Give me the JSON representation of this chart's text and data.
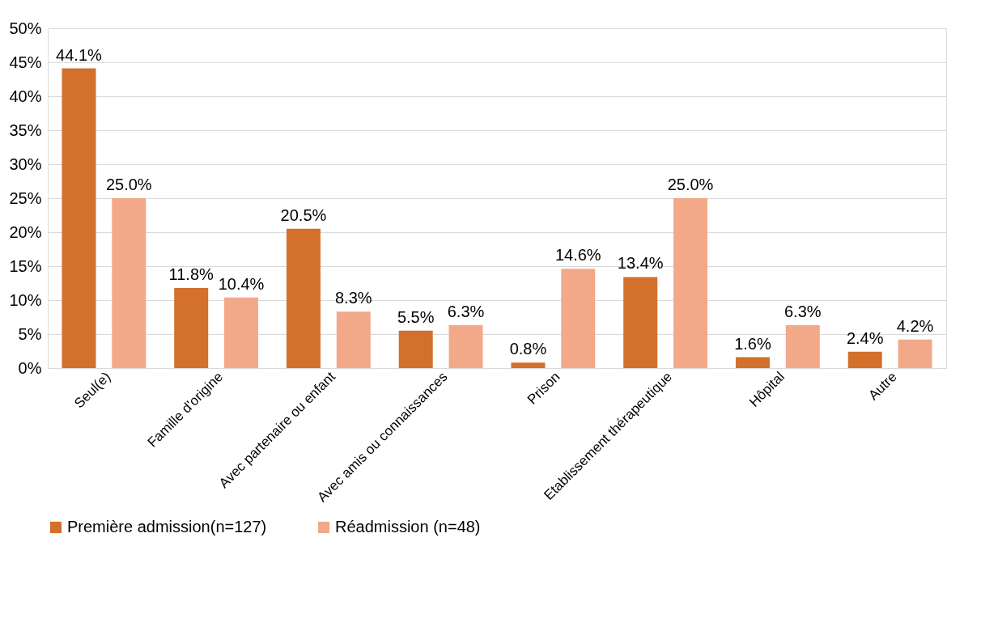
{
  "chart_data": {
    "type": "bar",
    "categories": [
      "Seul(e)",
      "Famille d'origine",
      "Avec partenaire ou enfant",
      "Avec amis ou connaissances",
      "Prison",
      "Etablissement thérapeutique",
      "Hôpital",
      "Autre"
    ],
    "series": [
      {
        "name": "Première admission(n=127)",
        "color": "#d2702c",
        "values": [
          44.1,
          11.8,
          20.5,
          5.5,
          0.8,
          13.4,
          1.6,
          2.4
        ],
        "value_labels": [
          "44.1%",
          "11.8%",
          "20.5%",
          "5.5%",
          "0.8%",
          "13.4%",
          "1.6%",
          "2.4%"
        ]
      },
      {
        "name": "Réadmission (n=48)",
        "color": "#f2a98a",
        "values": [
          25.0,
          10.4,
          8.3,
          6.3,
          14.6,
          25.0,
          6.3,
          4.2
        ],
        "value_labels": [
          "25.0%",
          "10.4%",
          "8.3%",
          "6.3%",
          "14.6%",
          "25.0%",
          "6.3%",
          "4.2%"
        ]
      }
    ],
    "ylim": [
      0,
      50
    ],
    "yticks": [
      {
        "value": 0,
        "label": "0%"
      },
      {
        "value": 5,
        "label": "5%"
      },
      {
        "value": 10,
        "label": "10%"
      },
      {
        "value": 15,
        "label": "15%"
      },
      {
        "value": 20,
        "label": "20%"
      },
      {
        "value": 25,
        "label": "25%"
      },
      {
        "value": 30,
        "label": "30%"
      },
      {
        "value": 35,
        "label": "35%"
      },
      {
        "value": 40,
        "label": "40%"
      },
      {
        "value": 45,
        "label": "45%"
      },
      {
        "value": 50,
        "label": "50%"
      }
    ],
    "grid": "y",
    "legend": "bottom"
  }
}
